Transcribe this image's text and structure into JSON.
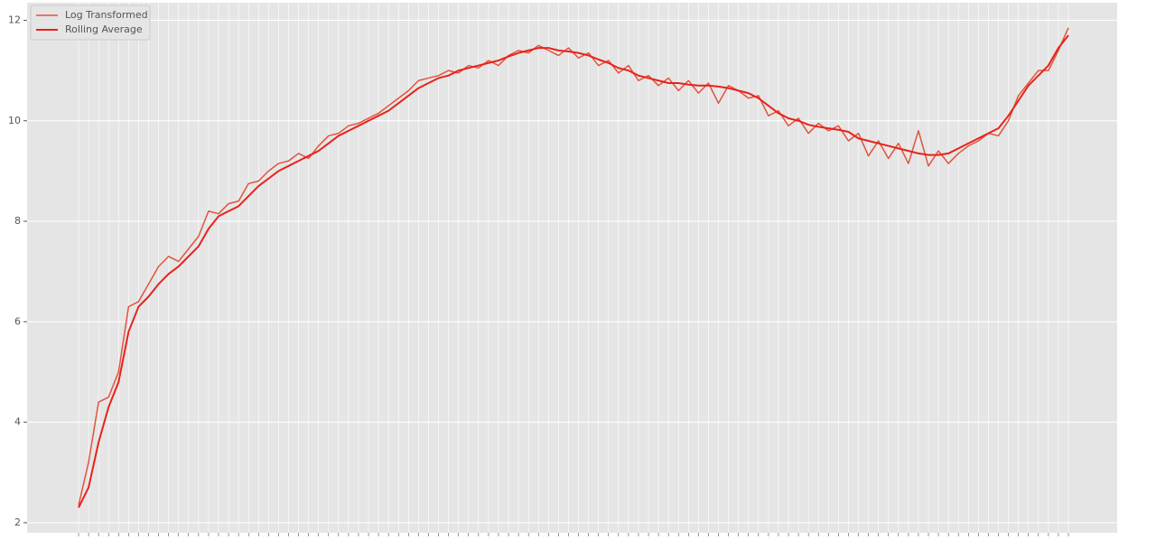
{
  "chart_data": {
    "type": "line",
    "categories": [
      null,
      null,
      null,
      null,
      null,
      null,
      null,
      null,
      null,
      null,
      null,
      null,
      null,
      null,
      null,
      null,
      null,
      null,
      null,
      null,
      null,
      null,
      null,
      null,
      null,
      null,
      null,
      null,
      null,
      null,
      null,
      null,
      null,
      null,
      null,
      null,
      null,
      null,
      null,
      null,
      null,
      null,
      null,
      null,
      null,
      null,
      null,
      null,
      null,
      null,
      null,
      null,
      null,
      null,
      null,
      null,
      null,
      null,
      null,
      null,
      null,
      null,
      null,
      null,
      null,
      null,
      null,
      null,
      null,
      null,
      null,
      null,
      null,
      null,
      null,
      null,
      null,
      null,
      null,
      null,
      null,
      null,
      null,
      null,
      null,
      null,
      null,
      null,
      null,
      null,
      null,
      null,
      null,
      null,
      null,
      null,
      null,
      null,
      null,
      null
    ],
    "series": [
      {
        "name": "Log Transformed",
        "color": "#e2533e",
        "width": 1.5,
        "values": [
          2.35,
          3.2,
          4.4,
          4.5,
          5.0,
          6.3,
          6.4,
          6.75,
          7.1,
          7.3,
          7.2,
          7.45,
          7.7,
          8.2,
          8.15,
          8.35,
          8.4,
          8.75,
          8.8,
          9.0,
          9.15,
          9.2,
          9.35,
          9.25,
          9.5,
          9.7,
          9.75,
          9.9,
          9.95,
          10.05,
          10.15,
          10.3,
          10.45,
          10.6,
          10.8,
          10.85,
          10.9,
          11.0,
          10.95,
          11.1,
          11.05,
          11.2,
          11.1,
          11.3,
          11.4,
          11.35,
          11.5,
          11.4,
          11.3,
          11.45,
          11.25,
          11.35,
          11.1,
          11.2,
          10.95,
          11.1,
          10.8,
          10.9,
          10.7,
          10.85,
          10.6,
          10.8,
          10.55,
          10.75,
          10.35,
          10.7,
          10.6,
          10.45,
          10.5,
          10.1,
          10.2,
          9.9,
          10.05,
          9.75,
          9.95,
          9.8,
          9.9,
          9.6,
          9.75,
          9.3,
          9.6,
          9.25,
          9.55,
          9.15,
          9.8,
          9.1,
          9.4,
          9.15,
          9.35,
          9.5,
          9.6,
          9.75,
          9.7,
          10.0,
          10.5,
          10.75,
          11.0,
          11.0,
          11.4,
          11.85
        ]
      },
      {
        "name": "Rolling Average",
        "color": "#e8221b",
        "width": 2,
        "values": [
          2.3,
          2.7,
          3.6,
          4.3,
          4.8,
          5.8,
          6.3,
          6.5,
          6.75,
          6.95,
          7.1,
          7.3,
          7.5,
          7.85,
          8.1,
          8.2,
          8.3,
          8.5,
          8.7,
          8.85,
          9.0,
          9.1,
          9.2,
          9.3,
          9.4,
          9.55,
          9.7,
          9.8,
          9.9,
          10.0,
          10.1,
          10.2,
          10.35,
          10.5,
          10.65,
          10.75,
          10.85,
          10.9,
          11.0,
          11.05,
          11.1,
          11.15,
          11.2,
          11.28,
          11.35,
          11.4,
          11.45,
          11.45,
          11.4,
          11.38,
          11.35,
          11.3,
          11.22,
          11.15,
          11.05,
          11.0,
          10.9,
          10.85,
          10.8,
          10.75,
          10.75,
          10.72,
          10.7,
          10.7,
          10.68,
          10.65,
          10.6,
          10.55,
          10.45,
          10.3,
          10.15,
          10.05,
          10.0,
          9.92,
          9.88,
          9.85,
          9.82,
          9.78,
          9.65,
          9.6,
          9.55,
          9.5,
          9.45,
          9.4,
          9.35,
          9.32,
          9.32,
          9.35,
          9.45,
          9.55,
          9.65,
          9.75,
          9.85,
          10.1,
          10.4,
          10.7,
          10.9,
          11.1,
          11.45,
          11.7
        ]
      }
    ],
    "ylim": [
      1.8,
      12.35
    ],
    "yticks": [
      2,
      4,
      6,
      8,
      10,
      12
    ],
    "grid": true,
    "legend": "upper left"
  }
}
